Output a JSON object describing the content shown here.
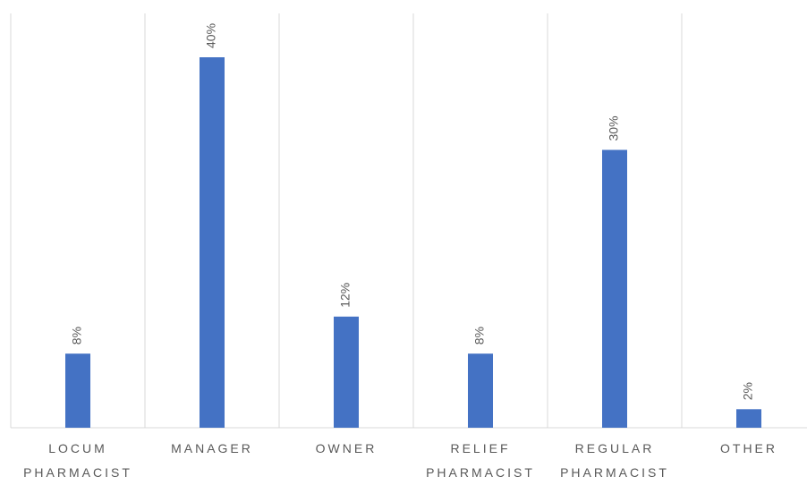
{
  "chart_data": {
    "type": "bar",
    "categories": [
      "LOCUM PHARMACIST",
      "MANAGER",
      "OWNER",
      "RELIEF PHARMACIST",
      "REGULAR PHARMACIST",
      "OTHER"
    ],
    "values": [
      8,
      40,
      12,
      8,
      30,
      2
    ],
    "value_labels": [
      "8%",
      "40%",
      "12%",
      "8%",
      "30%",
      "2%"
    ],
    "color": "#4472c4",
    "grid": true
  }
}
